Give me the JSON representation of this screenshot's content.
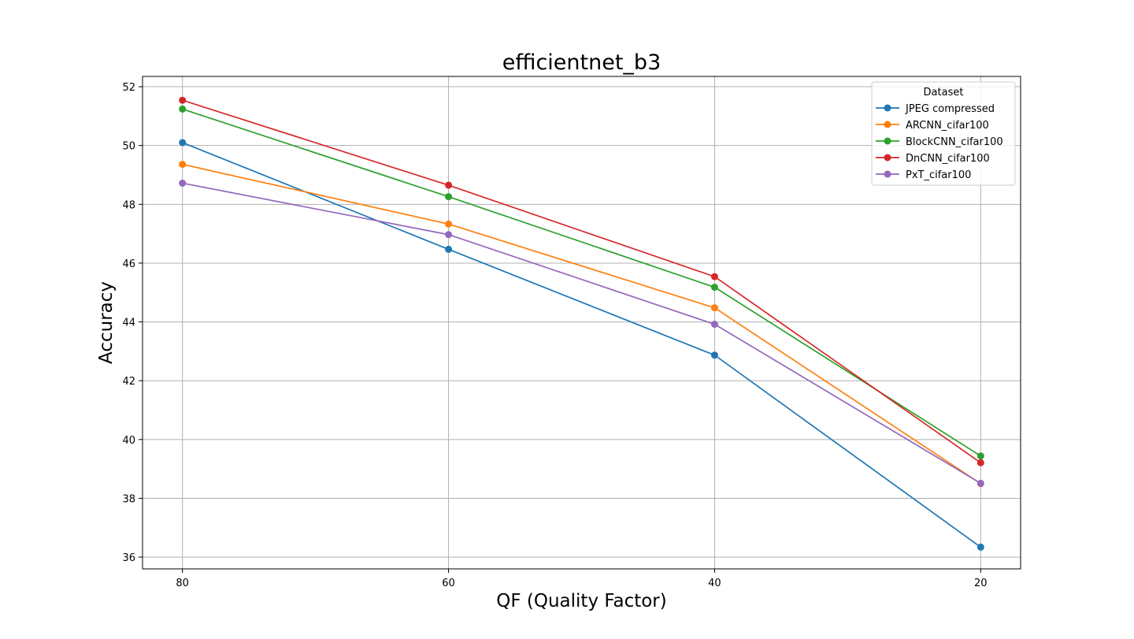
{
  "chart_data": {
    "type": "line",
    "title": "efficientnet_b3",
    "xlabel": "QF (Quality Factor)",
    "ylabel": "Accuracy",
    "x": [
      80,
      60,
      40,
      20
    ],
    "x_inverted": true,
    "xlim": [
      83,
      17
    ],
    "ylim": [
      35.6,
      52.35
    ],
    "yticks": [
      36,
      38,
      40,
      42,
      44,
      46,
      48,
      50,
      52
    ],
    "xticks": [
      80,
      60,
      40,
      20
    ],
    "grid": true,
    "legend": {
      "title": "Dataset",
      "placement": "top-right"
    },
    "series": [
      {
        "name": "JPEG compressed",
        "color": "#1f77b4",
        "values": [
          50.1,
          46.47,
          42.87,
          36.34
        ]
      },
      {
        "name": "ARCNN_cifar100",
        "color": "#ff7f0e",
        "values": [
          49.36,
          47.33,
          44.48,
          38.5
        ]
      },
      {
        "name": "BlockCNN_cifar100",
        "color": "#2ca02c",
        "values": [
          51.24,
          48.26,
          45.18,
          39.44
        ]
      },
      {
        "name": "DnCNN_cifar100",
        "color": "#d62728",
        "values": [
          51.54,
          48.65,
          45.54,
          39.21
        ]
      },
      {
        "name": "PxT_cifar100",
        "color": "#9467bd",
        "values": [
          48.72,
          46.97,
          43.92,
          38.51
        ]
      }
    ]
  }
}
